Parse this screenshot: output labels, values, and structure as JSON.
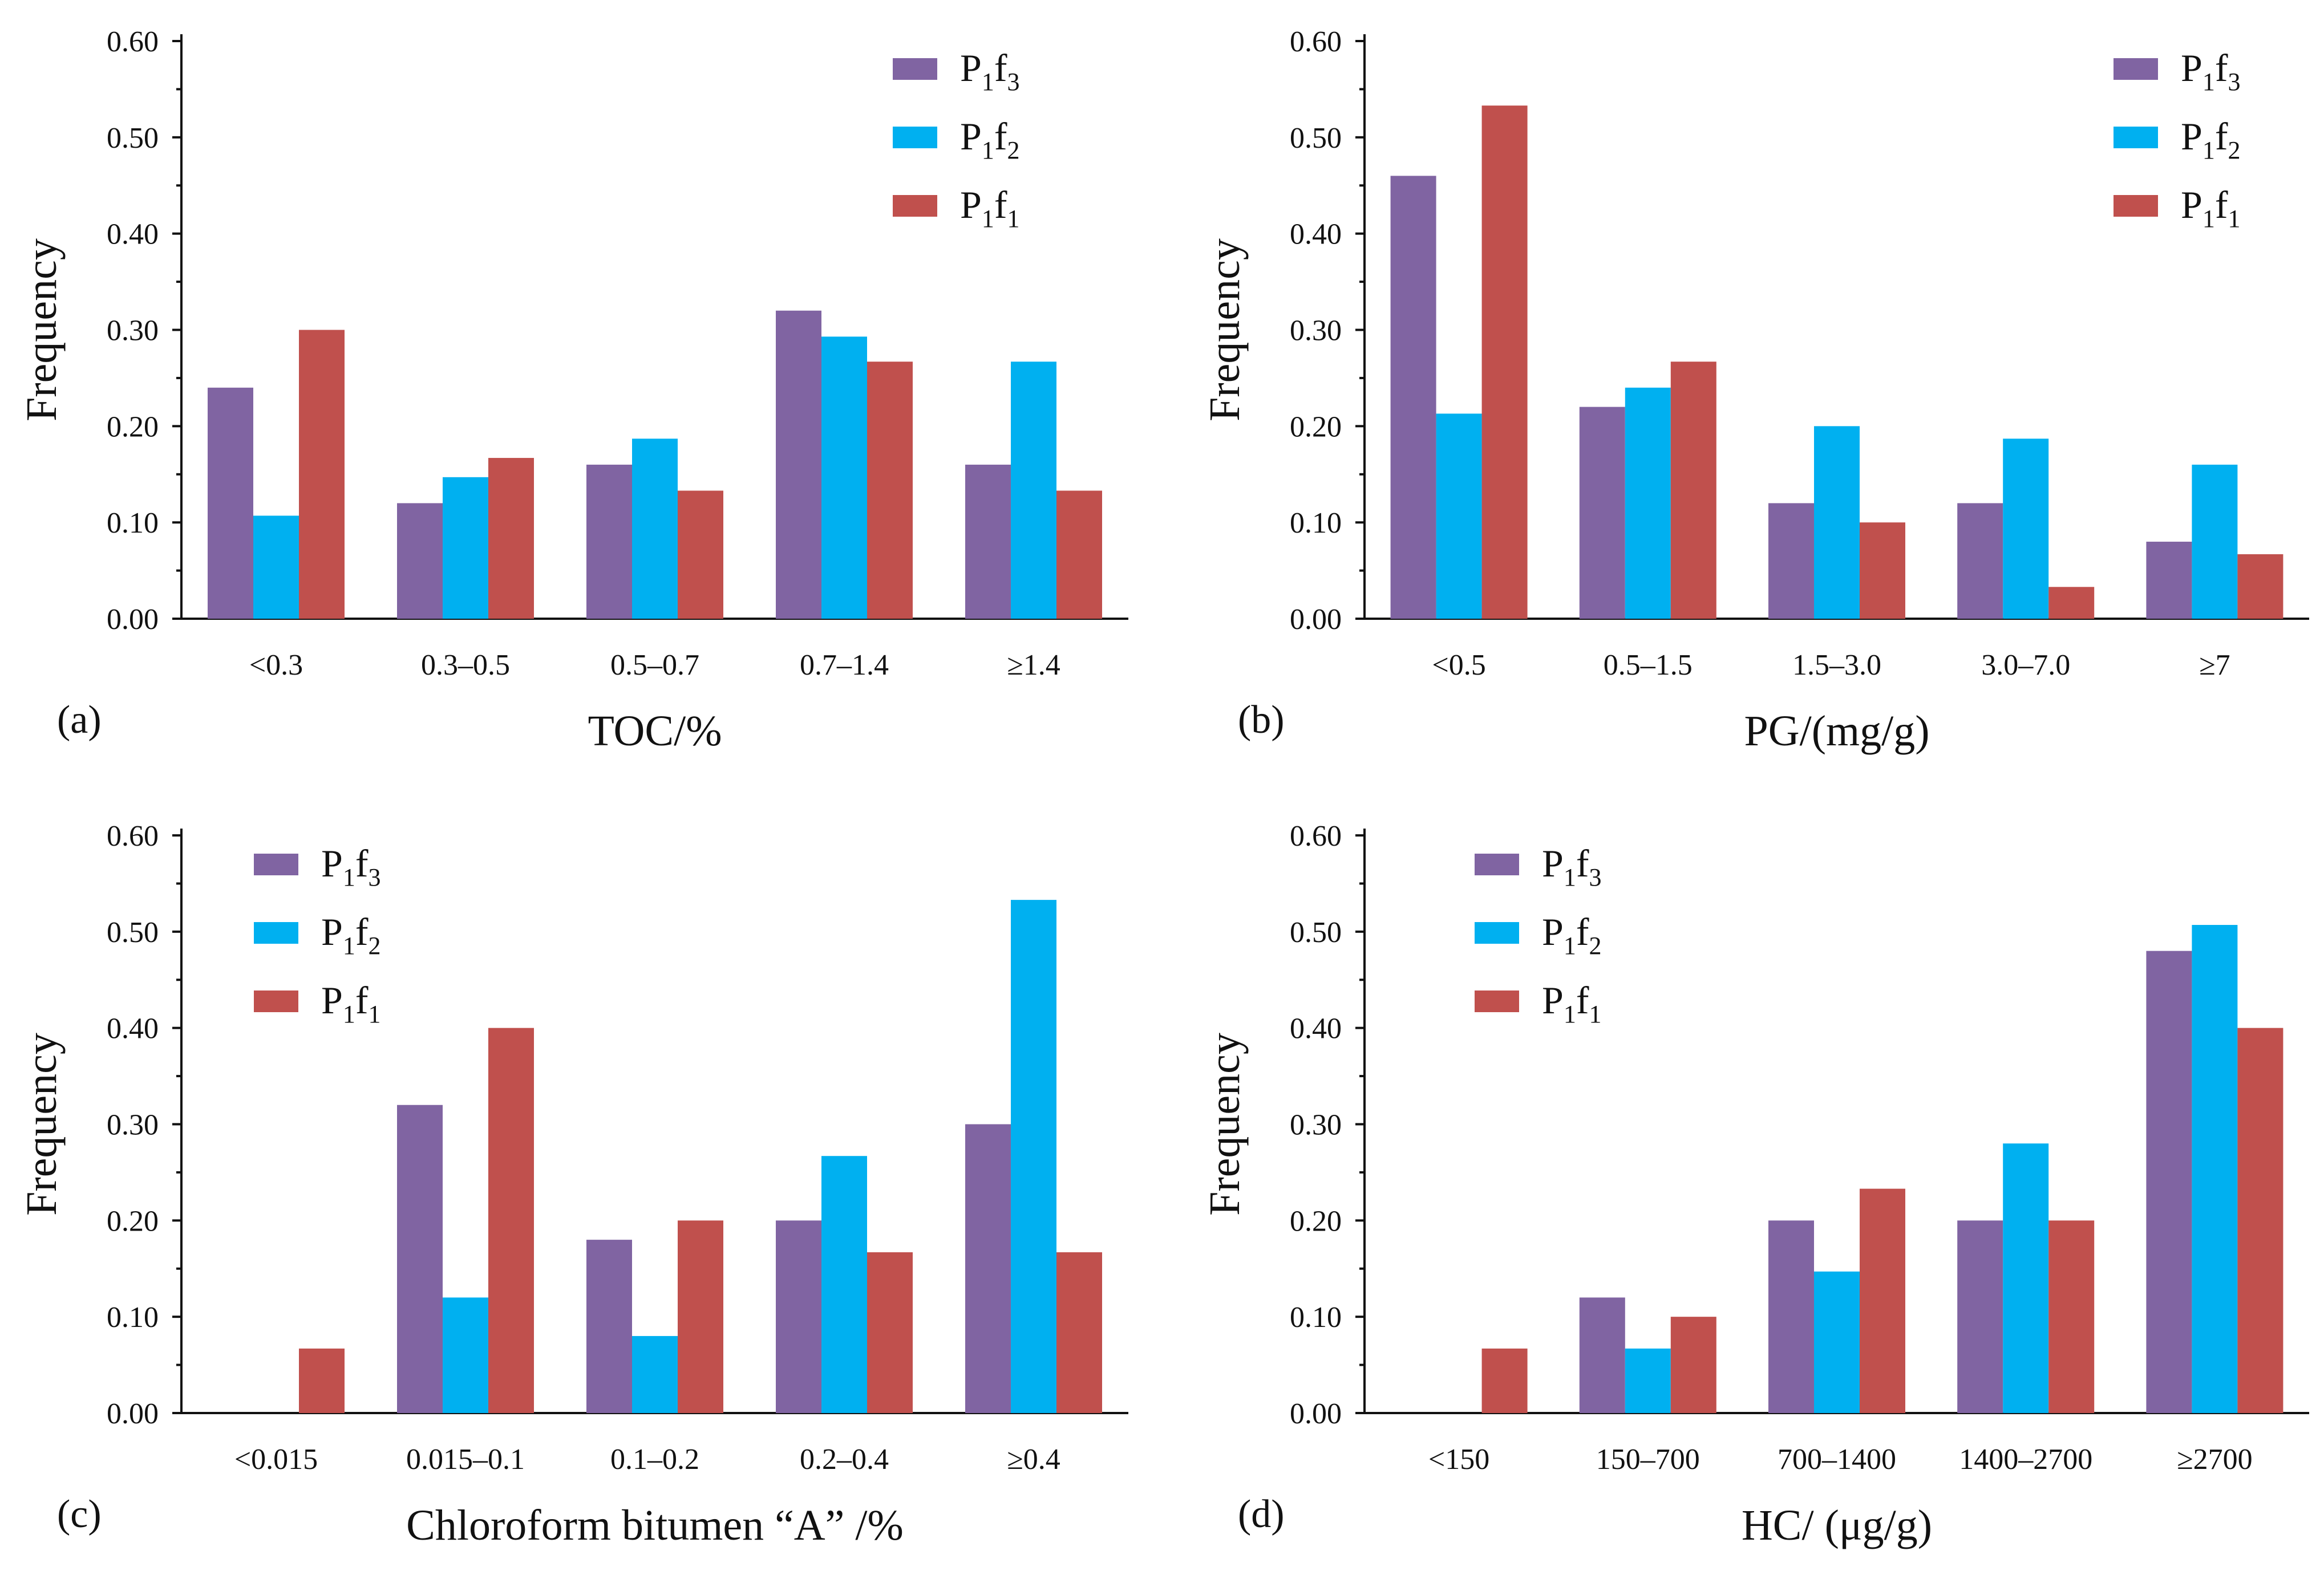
{
  "colors": {
    "P1f3": "#8064A2",
    "P1f2": "#00B0F0",
    "P1f1": "#C0504D",
    "axis": "#111111"
  },
  "legend": [
    {
      "key": "P1f3",
      "main": "P",
      "sub1": "1",
      "mid": "f",
      "sub2": "3"
    },
    {
      "key": "P1f2",
      "main": "P",
      "sub1": "1",
      "mid": "f",
      "sub2": "2"
    },
    {
      "key": "P1f1",
      "main": "P",
      "sub1": "1",
      "mid": "f",
      "sub2": "1"
    }
  ],
  "chart_data": [
    {
      "type": "bar",
      "panel": "(a)",
      "xlabel": "TOC/%",
      "ylabel": "Frequency",
      "ylim": [
        0,
        0.6
      ],
      "yticks": [
        "0.00",
        "0.10",
        "0.20",
        "0.30",
        "0.40",
        "0.50",
        "0.60"
      ],
      "legend_position": "top-right",
      "categories": [
        "<0.3",
        "0.3–0.5",
        "0.5–0.7",
        "0.7–1.4",
        "≥1.4"
      ],
      "series": [
        {
          "name": "P1f3",
          "values": [
            0.24,
            0.12,
            0.16,
            0.32,
            0.16
          ]
        },
        {
          "name": "P1f2",
          "values": [
            0.107,
            0.147,
            0.187,
            0.293,
            0.267
          ]
        },
        {
          "name": "P1f1",
          "values": [
            0.3,
            0.167,
            0.133,
            0.267,
            0.133
          ]
        }
      ]
    },
    {
      "type": "bar",
      "panel": "(b)",
      "xlabel": "PG/(mg/g)",
      "ylabel": "Frequency",
      "ylim": [
        0,
        0.6
      ],
      "yticks": [
        "0.00",
        "0.10",
        "0.20",
        "0.30",
        "0.40",
        "0.50",
        "0.60"
      ],
      "legend_position": "top-right",
      "categories": [
        "<0.5",
        "0.5–1.5",
        "1.5–3.0",
        "3.0–7.0",
        "≥7"
      ],
      "series": [
        {
          "name": "P1f3",
          "values": [
            0.46,
            0.22,
            0.12,
            0.12,
            0.08
          ]
        },
        {
          "name": "P1f2",
          "values": [
            0.213,
            0.24,
            0.2,
            0.187,
            0.16
          ]
        },
        {
          "name": "P1f1",
          "values": [
            0.533,
            0.267,
            0.1,
            0.033,
            0.067
          ]
        }
      ]
    },
    {
      "type": "bar",
      "panel": "(c)",
      "xlabel": "Chloroform bitumen “A” /%",
      "ylabel": "Frequency",
      "ylim": [
        0,
        0.6
      ],
      "yticks": [
        "0.00",
        "0.10",
        "0.20",
        "0.30",
        "0.40",
        "0.50",
        "0.60"
      ],
      "legend_position": "top-left",
      "categories": [
        "<0.015",
        "0.015–0.1",
        "0.1–0.2",
        "0.2–0.4",
        "≥0.4"
      ],
      "series": [
        {
          "name": "P1f3",
          "values": [
            0.0,
            0.32,
            0.18,
            0.2,
            0.3
          ]
        },
        {
          "name": "P1f2",
          "values": [
            0.0,
            0.12,
            0.08,
            0.267,
            0.533
          ]
        },
        {
          "name": "P1f1",
          "values": [
            0.067,
            0.4,
            0.2,
            0.167,
            0.167
          ]
        }
      ]
    },
    {
      "type": "bar",
      "panel": "(d)",
      "xlabel": "HC/ (μg/g)",
      "ylabel": "Frequency",
      "ylim": [
        0,
        0.6
      ],
      "yticks": [
        "0.00",
        "0.10",
        "0.20",
        "0.30",
        "0.40",
        "0.50",
        "0.60"
      ],
      "legend_position": "top-left",
      "categories": [
        "<150",
        "150–700",
        "700–1400",
        "1400–2700",
        "≥2700"
      ],
      "series": [
        {
          "name": "P1f3",
          "values": [
            0.0,
            0.12,
            0.2,
            0.2,
            0.48
          ]
        },
        {
          "name": "P1f2",
          "values": [
            0.0,
            0.067,
            0.147,
            0.28,
            0.507
          ]
        },
        {
          "name": "P1f1",
          "values": [
            0.067,
            0.1,
            0.233,
            0.2,
            0.4
          ]
        }
      ]
    }
  ]
}
